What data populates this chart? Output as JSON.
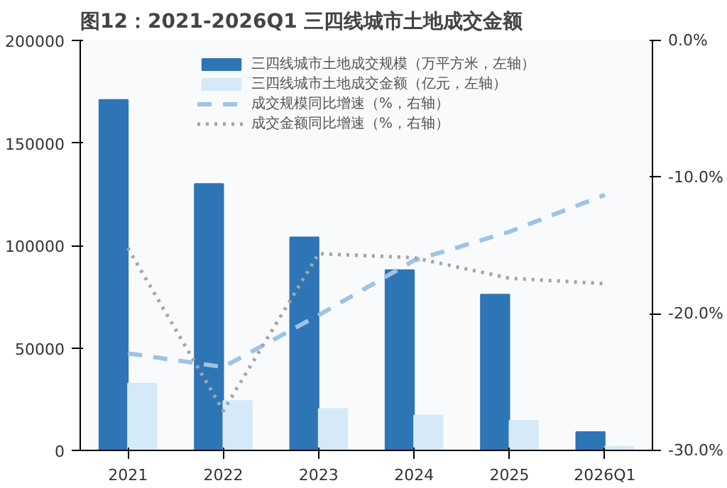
{
  "chart_data": {
    "type": "bar",
    "title": "图12：2021-2026Q1 三四线城市土地成交金额",
    "categories": [
      "2021",
      "2022",
      "2023",
      "2024",
      "2025",
      "2026Q1"
    ],
    "series": [
      {
        "name": "三四线城市土地成交规模（万平方米，左轴）",
        "color": "#2e75b6",
        "values": [
          171000,
          130000,
          104000,
          88000,
          76000,
          9000
        ]
      },
      {
        "name": "三四线城市土地成交金额（亿元，左轴）",
        "color": "#d6e9f8",
        "values": [
          32600,
          24100,
          20200,
          17000,
          14500,
          1800
        ]
      },
      {
        "name": "成交规模同比增速（%，右轴）",
        "type": "line",
        "axis": "y2",
        "line_style": "dashed",
        "color": "#9dc3e6",
        "values": [
          -22.9,
          -23.9,
          -20.1,
          -16.1,
          -14.0,
          -11.3
        ]
      },
      {
        "name": "成交金额同比增速（%，右轴）",
        "type": "line",
        "axis": "y2",
        "line_style": "dotted",
        "color": "#a5a5a5",
        "values": [
          -15.2,
          -27.1,
          -15.6,
          -15.9,
          -17.4,
          -17.8
        ]
      }
    ],
    "ylim": [
      0,
      200000
    ],
    "yticks": [
      0,
      50000,
      100000,
      150000,
      200000
    ],
    "y2lim": [
      -30,
      0
    ],
    "y2ticks": [
      {
        "value": -30,
        "label": "-30.0%"
      },
      {
        "value": -20,
        "label": "-20.0%"
      },
      {
        "value": -10,
        "label": "-10.0%"
      },
      {
        "value": 0,
        "label": "0.0%"
      }
    ],
    "grid": false,
    "legend": "top"
  }
}
